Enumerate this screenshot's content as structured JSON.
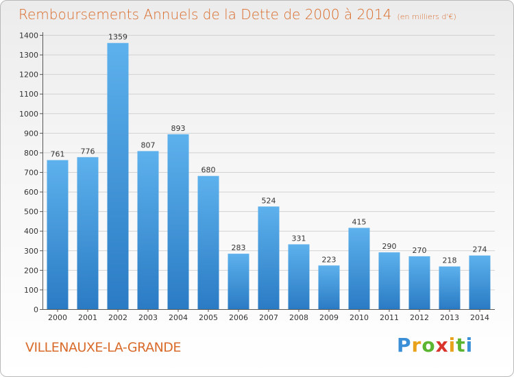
{
  "chart_data": {
    "type": "bar",
    "title": "Remboursements Annuels de la Dette de 2000 à 2014",
    "subtitle": "(en milliers d'€)",
    "categories": [
      "2000",
      "2001",
      "2002",
      "2003",
      "2004",
      "2005",
      "2006",
      "2007",
      "2008",
      "2009",
      "2010",
      "2011",
      "2012",
      "2013",
      "2014"
    ],
    "values": [
      761,
      776,
      1359,
      807,
      893,
      680,
      283,
      524,
      331,
      223,
      415,
      290,
      270,
      218,
      274
    ],
    "ylim": [
      0,
      1400
    ],
    "yticks": [
      0,
      100,
      200,
      300,
      400,
      500,
      600,
      700,
      800,
      900,
      1000,
      1100,
      1200,
      1300,
      1400
    ],
    "grid": true,
    "bar_color": "#3a8fd6"
  },
  "footer": {
    "commune": "VILLENAUXE-LA-GRANDE",
    "logo_letters": [
      "P",
      "r",
      "o",
      "x",
      "i",
      "t",
      "i"
    ],
    "logo_colors": [
      "#3a8fd6",
      "#e8a21c",
      "#5cb531",
      "#d9342b",
      "#e8a21c",
      "#5cb531",
      "#3a8fd6"
    ]
  }
}
